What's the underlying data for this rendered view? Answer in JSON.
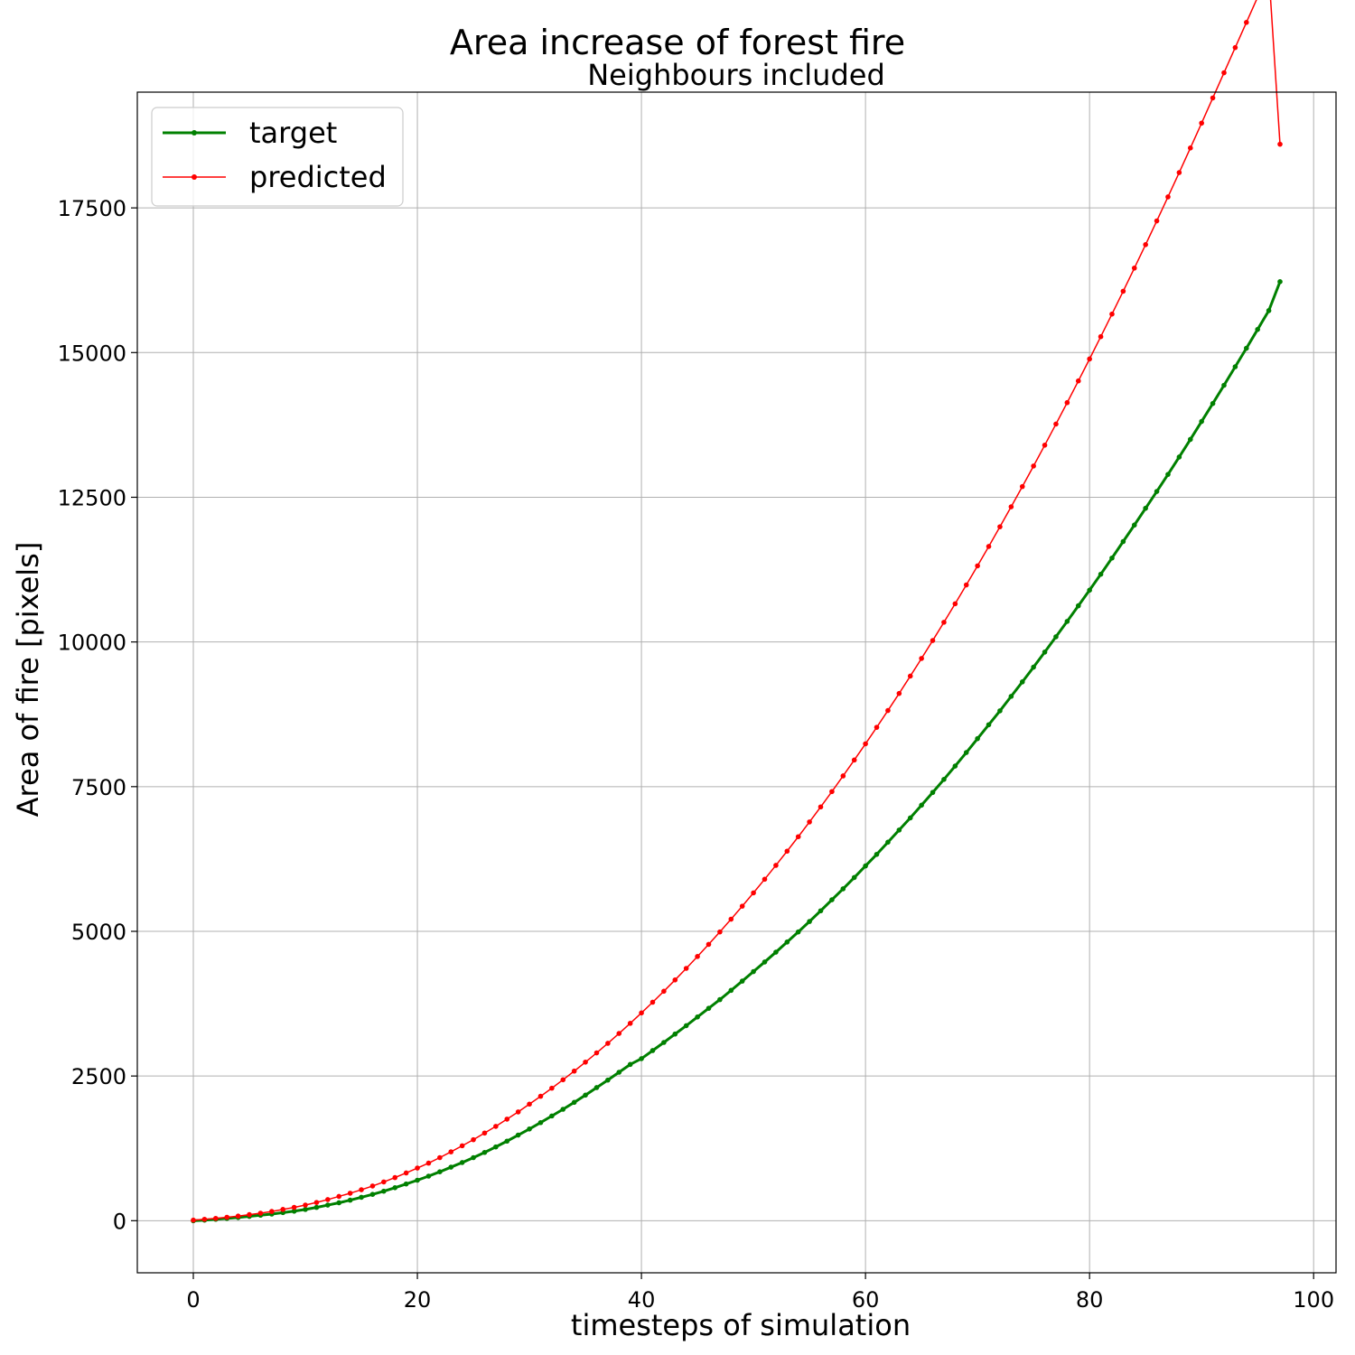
{
  "chart_data": {
    "type": "line",
    "title": "Area increase of forest fire",
    "subtitle": "Neighbours included",
    "xlabel": "timesteps of simulation",
    "ylabel": "Area of fire [pixels]",
    "xlim": [
      -5,
      102
    ],
    "ylim": [
      -900,
      19500
    ],
    "xticks": [
      0,
      20,
      40,
      60,
      80,
      100
    ],
    "yticks": [
      0,
      2500,
      5000,
      7500,
      10000,
      12500,
      15000,
      17500
    ],
    "grid": true,
    "legend_position": "top-left",
    "series": [
      {
        "name": "target",
        "color": "#008000",
        "x_start": 0,
        "x_step": 1,
        "values": [
          0,
          10,
          25,
          40,
          55,
          75,
          95,
          115,
          140,
          165,
          195,
          230,
          270,
          310,
          355,
          405,
          455,
          510,
          570,
          635,
          700,
          770,
          845,
          925,
          1005,
          1090,
          1180,
          1275,
          1375,
          1480,
          1585,
          1695,
          1810,
          1925,
          2045,
          2170,
          2300,
          2430,
          2565,
          2700,
          2800,
          2940,
          3080,
          3225,
          3370,
          3520,
          3670,
          3820,
          3980,
          4140,
          4305,
          4470,
          4640,
          4815,
          4990,
          5170,
          5355,
          5545,
          5735,
          5930,
          6130,
          6330,
          6540,
          6750,
          6960,
          7180,
          7400,
          7625,
          7855,
          8090,
          8330,
          8570,
          8810,
          9060,
          9310,
          9565,
          9825,
          10090,
          10355,
          10625,
          10895,
          11170,
          11450,
          11735,
          12020,
          12310,
          12600,
          12895,
          13195,
          13500,
          13810,
          14120,
          14435,
          14755,
          15075,
          15400,
          15725,
          16225
        ]
      },
      {
        "name": "predicted",
        "color": "#ff0000",
        "x_start": 0,
        "x_step": 1,
        "values": [
          10,
          25,
          40,
          60,
          80,
          105,
          130,
          160,
          195,
          230,
          270,
          315,
          365,
          420,
          475,
          535,
          600,
          670,
          745,
          825,
          910,
          995,
          1090,
          1190,
          1295,
          1400,
          1515,
          1630,
          1755,
          1880,
          2015,
          2150,
          2290,
          2435,
          2585,
          2740,
          2900,
          3065,
          3235,
          3410,
          3590,
          3775,
          3965,
          4160,
          4360,
          4565,
          4775,
          4990,
          5210,
          5435,
          5665,
          5900,
          6140,
          6385,
          6635,
          6890,
          7150,
          7415,
          7685,
          7960,
          8240,
          8525,
          8815,
          9110,
          9410,
          9715,
          10025,
          10340,
          10660,
          10985,
          11315,
          11650,
          11990,
          12335,
          12685,
          13040,
          13400,
          13765,
          14135,
          14510,
          14890,
          15275,
          15665,
          16060,
          16460,
          16865,
          17275,
          17690,
          18110,
          18535,
          18965,
          19400,
          19835,
          20270,
          20705,
          21140,
          21575,
          18600
        ]
      }
    ]
  }
}
